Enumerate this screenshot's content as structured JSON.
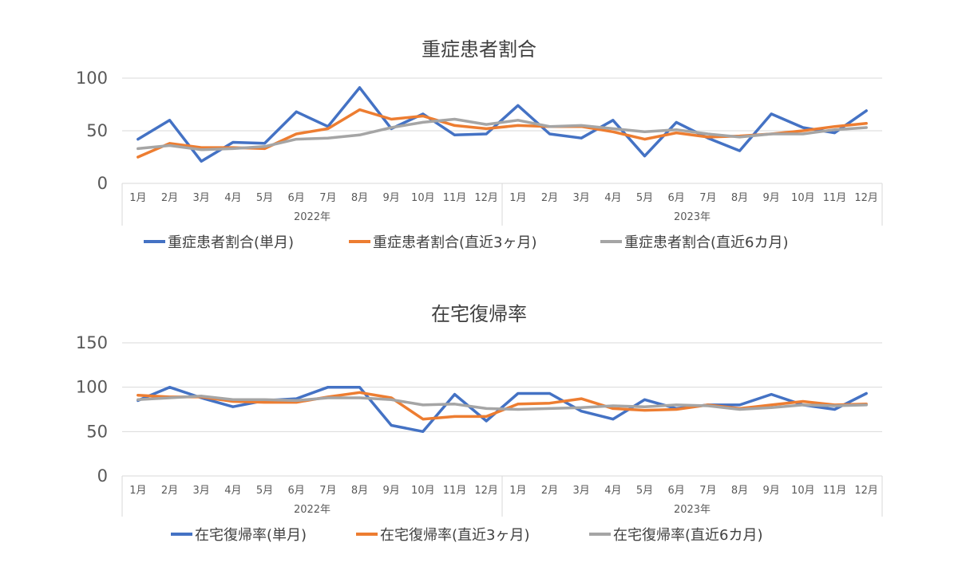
{
  "chart_data": [
    {
      "type": "line",
      "title": "重症患者割合",
      "ylim": [
        0,
        100
      ],
      "yticks": [
        "0",
        "50",
        "100"
      ],
      "months": [
        "1月",
        "2月",
        "3月",
        "4月",
        "5月",
        "6月",
        "7月",
        "8月",
        "9月",
        "10月",
        "11月",
        "12月",
        "1月",
        "2月",
        "3月",
        "4月",
        "5月",
        "6月",
        "7月",
        "8月",
        "9月",
        "10月",
        "11月",
        "12月"
      ],
      "years": [
        "2022年",
        "2023年"
      ],
      "grid": true,
      "legend_position": "bottom",
      "series": [
        {
          "name": "重症患者割合(単月)",
          "color": "#4472C4",
          "values": [
            42,
            60,
            21,
            39,
            38,
            68,
            54,
            91,
            52,
            66,
            46,
            47,
            74,
            47,
            43,
            60,
            26,
            58,
            43,
            31,
            66,
            53,
            48,
            69
          ]
        },
        {
          "name": "重症患者割合(直近3ヶ月)",
          "color": "#ED7D31",
          "values": [
            25,
            38,
            34,
            34,
            33,
            47,
            52,
            70,
            61,
            64,
            55,
            52,
            55,
            54,
            54,
            49,
            42,
            48,
            44,
            45,
            47,
            50,
            54,
            57
          ]
        },
        {
          "name": "重症患者割合(直近6カ月)",
          "color": "#A5A5A5",
          "values": [
            33,
            36,
            32,
            33,
            35,
            42,
            43,
            46,
            53,
            58,
            61,
            56,
            60,
            54,
            55,
            52,
            49,
            51,
            47,
            44,
            47,
            47,
            51,
            53
          ]
        }
      ]
    },
    {
      "type": "line",
      "title": "在宅復帰率",
      "ylim": [
        0,
        150
      ],
      "yticks": [
        "0",
        "50",
        "100",
        "150"
      ],
      "months": [
        "1月",
        "2月",
        "3月",
        "4月",
        "5月",
        "6月",
        "7月",
        "8月",
        "9月",
        "10月",
        "11月",
        "12月",
        "1月",
        "2月",
        "3月",
        "4月",
        "5月",
        "6月",
        "7月",
        "8月",
        "9月",
        "10月",
        "11月",
        "12月"
      ],
      "years": [
        "2022年",
        "2023年"
      ],
      "grid": true,
      "legend_position": "bottom",
      "series": [
        {
          "name": "在宅復帰率(単月)",
          "color": "#4472C4",
          "values": [
            85,
            100,
            88,
            78,
            85,
            87,
            100,
            100,
            57,
            50,
            92,
            62,
            93,
            93,
            73,
            64,
            86,
            76,
            80,
            80,
            92,
            80,
            75,
            93
          ]
        },
        {
          "name": "在宅復帰率(直近3ヶ月)",
          "color": "#ED7D31",
          "values": [
            91,
            89,
            89,
            84,
            83,
            83,
            89,
            94,
            88,
            64,
            67,
            67,
            81,
            82,
            87,
            76,
            74,
            75,
            80,
            76,
            80,
            84,
            80,
            81
          ]
        },
        {
          "name": "在宅復帰率(直近6カ月)",
          "color": "#A5A5A5",
          "values": [
            86,
            88,
            90,
            86,
            86,
            85,
            88,
            88,
            86,
            80,
            81,
            76,
            75,
            76,
            77,
            79,
            78,
            80,
            79,
            75,
            77,
            80,
            79,
            80
          ]
        }
      ]
    }
  ]
}
